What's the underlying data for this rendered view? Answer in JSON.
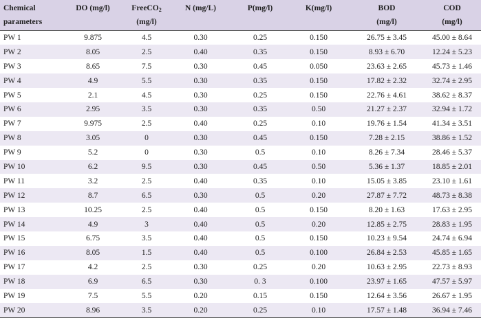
{
  "table": {
    "headers": [
      {
        "line1": "Chemical",
        "line2": "parameters"
      },
      {
        "line1": "DO (mg/l)",
        "line2": ""
      },
      {
        "line1": "FreeCO",
        "sub": "2",
        "line2": "(mg/l)"
      },
      {
        "line1": "N (mg/L)",
        "line2": ""
      },
      {
        "line1": "P(mg/l)",
        "line2": ""
      },
      {
        "line1": "K(mg/l)",
        "line2": ""
      },
      {
        "line1": "BOD",
        "line2": "(mg/l)"
      },
      {
        "line1": "COD",
        "line2": "(mg/l)"
      }
    ],
    "rows": [
      [
        "PW 1",
        "9.875",
        "4.5",
        "0.30",
        "0.25",
        "0.150",
        "26.75 ± 3.45",
        "45.00 ± 8.64"
      ],
      [
        "PW 2",
        "8.05",
        "2.5",
        "0.40",
        "0.35",
        "0.150",
        "8.93 ± 6.70",
        "12.24 ± 5.23"
      ],
      [
        "PW 3",
        "8.65",
        "7.5",
        "0.30",
        "0.45",
        "0.050",
        "23.63 ± 2.65",
        "45.73 ± 1.46"
      ],
      [
        "PW 4",
        "4.9",
        "5.5",
        "0.30",
        "0.35",
        "0.150",
        "17.82 ± 2.32",
        "32.74 ± 2.95"
      ],
      [
        "PW 5",
        "2.1",
        "4.5",
        "0.30",
        "0.25",
        "0.150",
        "22.76 ± 4.61",
        "38.62 ± 8.37"
      ],
      [
        "PW 6",
        "2.95",
        "3.5",
        "0.30",
        "0.35",
        "0.50",
        "21.27 ± 2.37",
        "32.94 ± 1.72"
      ],
      [
        "PW 7",
        "9.975",
        "2.5",
        "0.40",
        "0.25",
        "0.10",
        "19.76 ± 1.54",
        "41.34 ± 3.51"
      ],
      [
        "PW 8",
        "3.05",
        "0",
        "0.30",
        "0.45",
        "0.150",
        "7.28 ± 2.15",
        "38.86 ± 1.52"
      ],
      [
        "PW 9",
        "5.2",
        "0",
        "0.30",
        "0.5",
        "0.10",
        "8.26 ± 7.34",
        "28.46 ± 5.37"
      ],
      [
        "PW 10",
        "6.2",
        "9.5",
        "0.30",
        "0.45",
        "0.50",
        "5.36 ± 1.37",
        "18.85 ± 2.01"
      ],
      [
        "PW 11",
        "3.2",
        "2.5",
        "0.40",
        "0.35",
        "0.10",
        "15.05 ± 3.85",
        "23.10 ± 1.61"
      ],
      [
        "PW 12",
        "8.7",
        "6.5",
        "0.30",
        "0.5",
        "0.20",
        "27.87 ± 7.72",
        "48.73 ± 8.38"
      ],
      [
        "PW 13",
        "10.25",
        "2.5",
        "0.40",
        "0.5",
        "0.150",
        "8.20 ± 1.63",
        "17.63 ± 2.95"
      ],
      [
        "PW 14",
        "4.9",
        "3",
        "0.40",
        "0.5",
        "0.20",
        "12.85 ± 2.75",
        "28.83 ± 1.95"
      ],
      [
        "PW 15",
        "6.75",
        "3.5",
        "0.40",
        "0.5",
        "0.150",
        "10.23 ± 9.54",
        "24.74 ± 6.94"
      ],
      [
        "PW 16",
        "8.05",
        "1.5",
        "0.40",
        "0.5",
        "0.100",
        "26.84 ± 2.53",
        "45.85 ± 1.65"
      ],
      [
        "PW 17",
        "4.2",
        "2.5",
        "0.30",
        "0.25",
        "0.20",
        "10.63 ± 2.95",
        "22.73 ± 8.93"
      ],
      [
        "PW 18",
        "6.9",
        "6.5",
        "0.30",
        "0. 3",
        "0.100",
        "23.97 ± 1.65",
        "47.57 ± 5.97"
      ],
      [
        "PW 19",
        "7.5",
        "5.5",
        "0.20",
        "0.15",
        "0.150",
        "12.64 ± 3.56",
        "26.67 ± 1.95"
      ],
      [
        "PW 20",
        "8.96",
        "3.5",
        "0.20",
        "0.25",
        "0.10",
        "17.57 ± 1.48",
        "36.94 ± 7.46"
      ]
    ]
  }
}
